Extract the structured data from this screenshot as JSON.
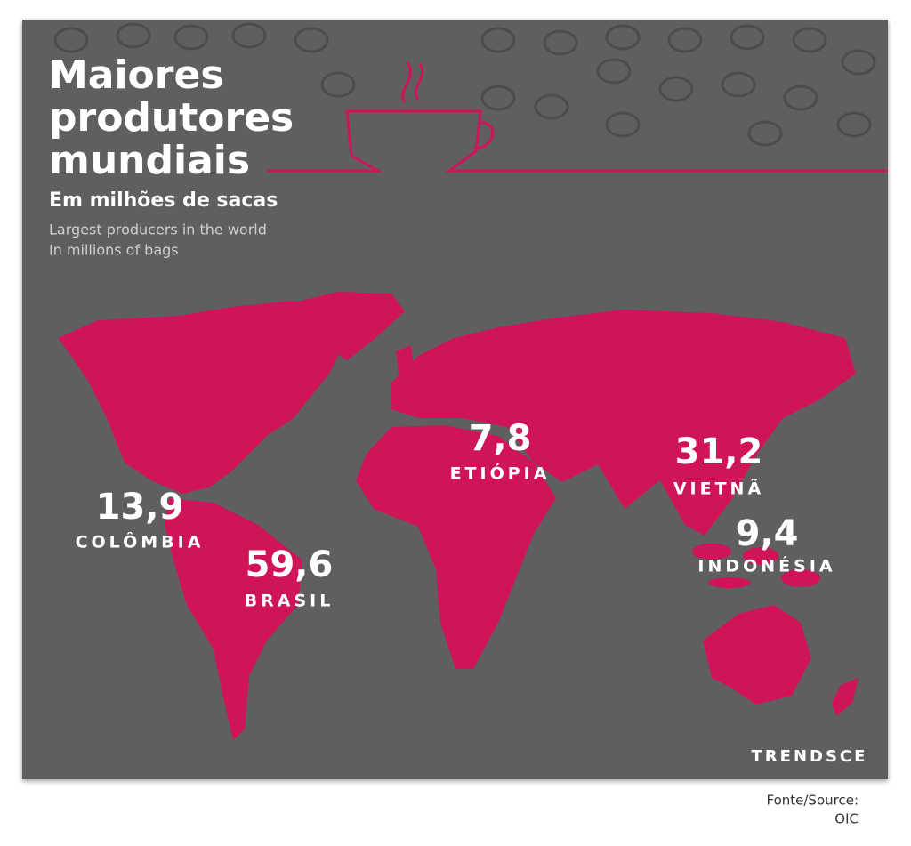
{
  "header": {
    "title_lines": [
      "Maiores",
      "produtores",
      "mundiais"
    ],
    "subtitle": "Em milhões de sacas",
    "subtitle_en_lines": [
      "Largest producers in the world",
      "In millions of bags"
    ]
  },
  "producers": [
    {
      "value": "13,9",
      "country": "COLÔMBIA"
    },
    {
      "value": "59,6",
      "country": "BRASIL"
    },
    {
      "value": "7,8",
      "country": "ETIÓPIA"
    },
    {
      "value": "31,2",
      "country": "VIETNÃ"
    },
    {
      "value": "9,4",
      "country": "INDONÉSIA"
    }
  ],
  "brand": "TRENDSCE",
  "source_lines": [
    "Fonte/Source:",
    "OIC"
  ]
}
